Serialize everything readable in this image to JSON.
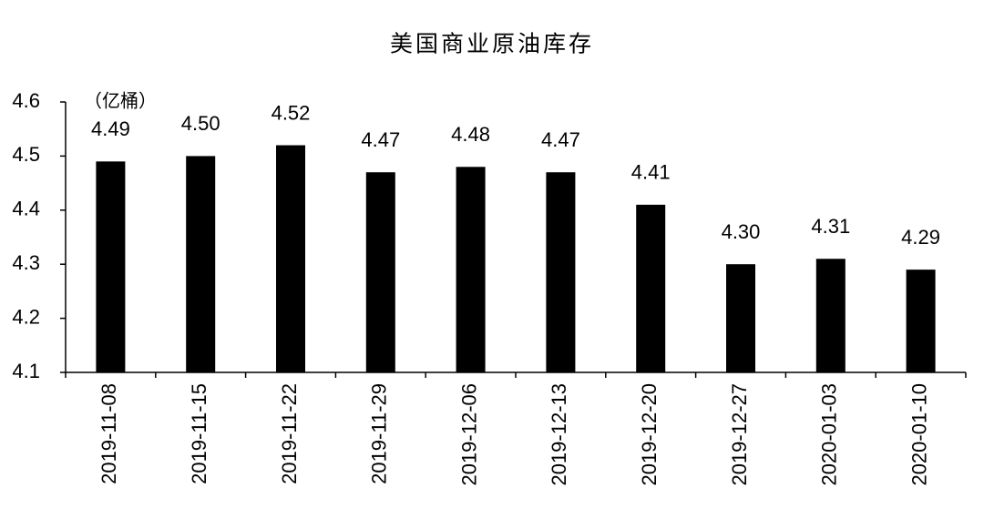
{
  "chart_data": {
    "type": "bar",
    "title": "美国商业原油库存",
    "unit": "（亿桶）",
    "categories": [
      "2019-11-08",
      "2019-11-15",
      "2019-11-22",
      "2019-11-29",
      "2019-12-06",
      "2019-12-13",
      "2019-12-20",
      "2019-12-27",
      "2020-01-03",
      "2020-01-10"
    ],
    "values": [
      4.49,
      4.5,
      4.52,
      4.47,
      4.48,
      4.47,
      4.41,
      4.3,
      4.31,
      4.29
    ],
    "value_labels": [
      "4.49",
      "4.50",
      "4.52",
      "4.47",
      "4.48",
      "4.47",
      "4.41",
      "4.30",
      "4.31",
      "4.29"
    ],
    "color": "#000000",
    "ylim": [
      4.1,
      4.6
    ],
    "yticks": [
      4.1,
      4.2,
      4.3,
      4.4,
      4.5,
      4.6
    ],
    "grid": false
  }
}
